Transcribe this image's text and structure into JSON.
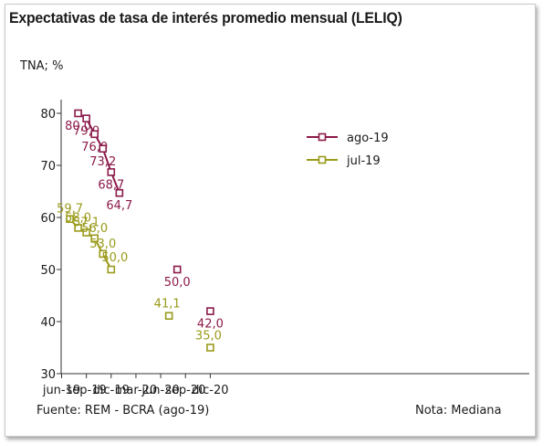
{
  "chart_data": {
    "type": "line",
    "title": "Expectativas de tasa de interés promedio mensual (LELIQ)",
    "ylabel": "TNA; %",
    "ylim": [
      30,
      85
    ],
    "yticks": [
      30,
      40,
      50,
      60,
      70,
      80
    ],
    "x_tick_labels": [
      "jun-19",
      "sep-19",
      "dic-19",
      "mar-20",
      "jun-20",
      "sep-20",
      "dic-20"
    ],
    "grid": false,
    "legend_position": "top-right",
    "series": [
      {
        "name": "ago-19",
        "color": "#8b1a4a",
        "points": [
          {
            "x": "ago-19",
            "y": 80.0,
            "label": "80,0",
            "connected": true
          },
          {
            "x": "sep-19",
            "y": 79.0,
            "label": "79,0",
            "connected": true
          },
          {
            "x": "oct-19",
            "y": 76.0,
            "label": "76,0",
            "connected": true
          },
          {
            "x": "nov-19",
            "y": 73.2,
            "label": "73,2",
            "connected": true
          },
          {
            "x": "dic-19",
            "y": 68.7,
            "label": "68,7",
            "connected": true
          },
          {
            "x": "ene-20",
            "y": 64.7,
            "label": "64,7",
            "connected": true
          },
          {
            "x": "ago-20",
            "y": 50.0,
            "label": "50,0",
            "connected": false
          },
          {
            "x": "dic-20",
            "y": 42.0,
            "label": "42,0",
            "connected": false
          }
        ]
      },
      {
        "name": "jul-19",
        "color": "#9a9a1a",
        "points": [
          {
            "x": "jul-19",
            "y": 59.7,
            "label": "59,7",
            "connected": true
          },
          {
            "x": "ago-19",
            "y": 58.0,
            "label": "58,0",
            "connected": true
          },
          {
            "x": "sep-19",
            "y": 57.1,
            "label": "57,1",
            "connected": true
          },
          {
            "x": "oct-19",
            "y": 56.0,
            "label": "56,0",
            "connected": true
          },
          {
            "x": "nov-19",
            "y": 53.0,
            "label": "53,0",
            "connected": true
          },
          {
            "x": "dic-19",
            "y": 50.0,
            "label": "50,0",
            "connected": true
          },
          {
            "x": "jul-20",
            "y": 41.1,
            "label": "41,1",
            "connected": false
          },
          {
            "x": "dic-20",
            "y": 35.0,
            "label": "35,0",
            "connected": false
          }
        ]
      }
    ]
  },
  "footer": {
    "source": "Fuente: REM - BCRA (ago-19)",
    "note": "Nota: Mediana"
  }
}
